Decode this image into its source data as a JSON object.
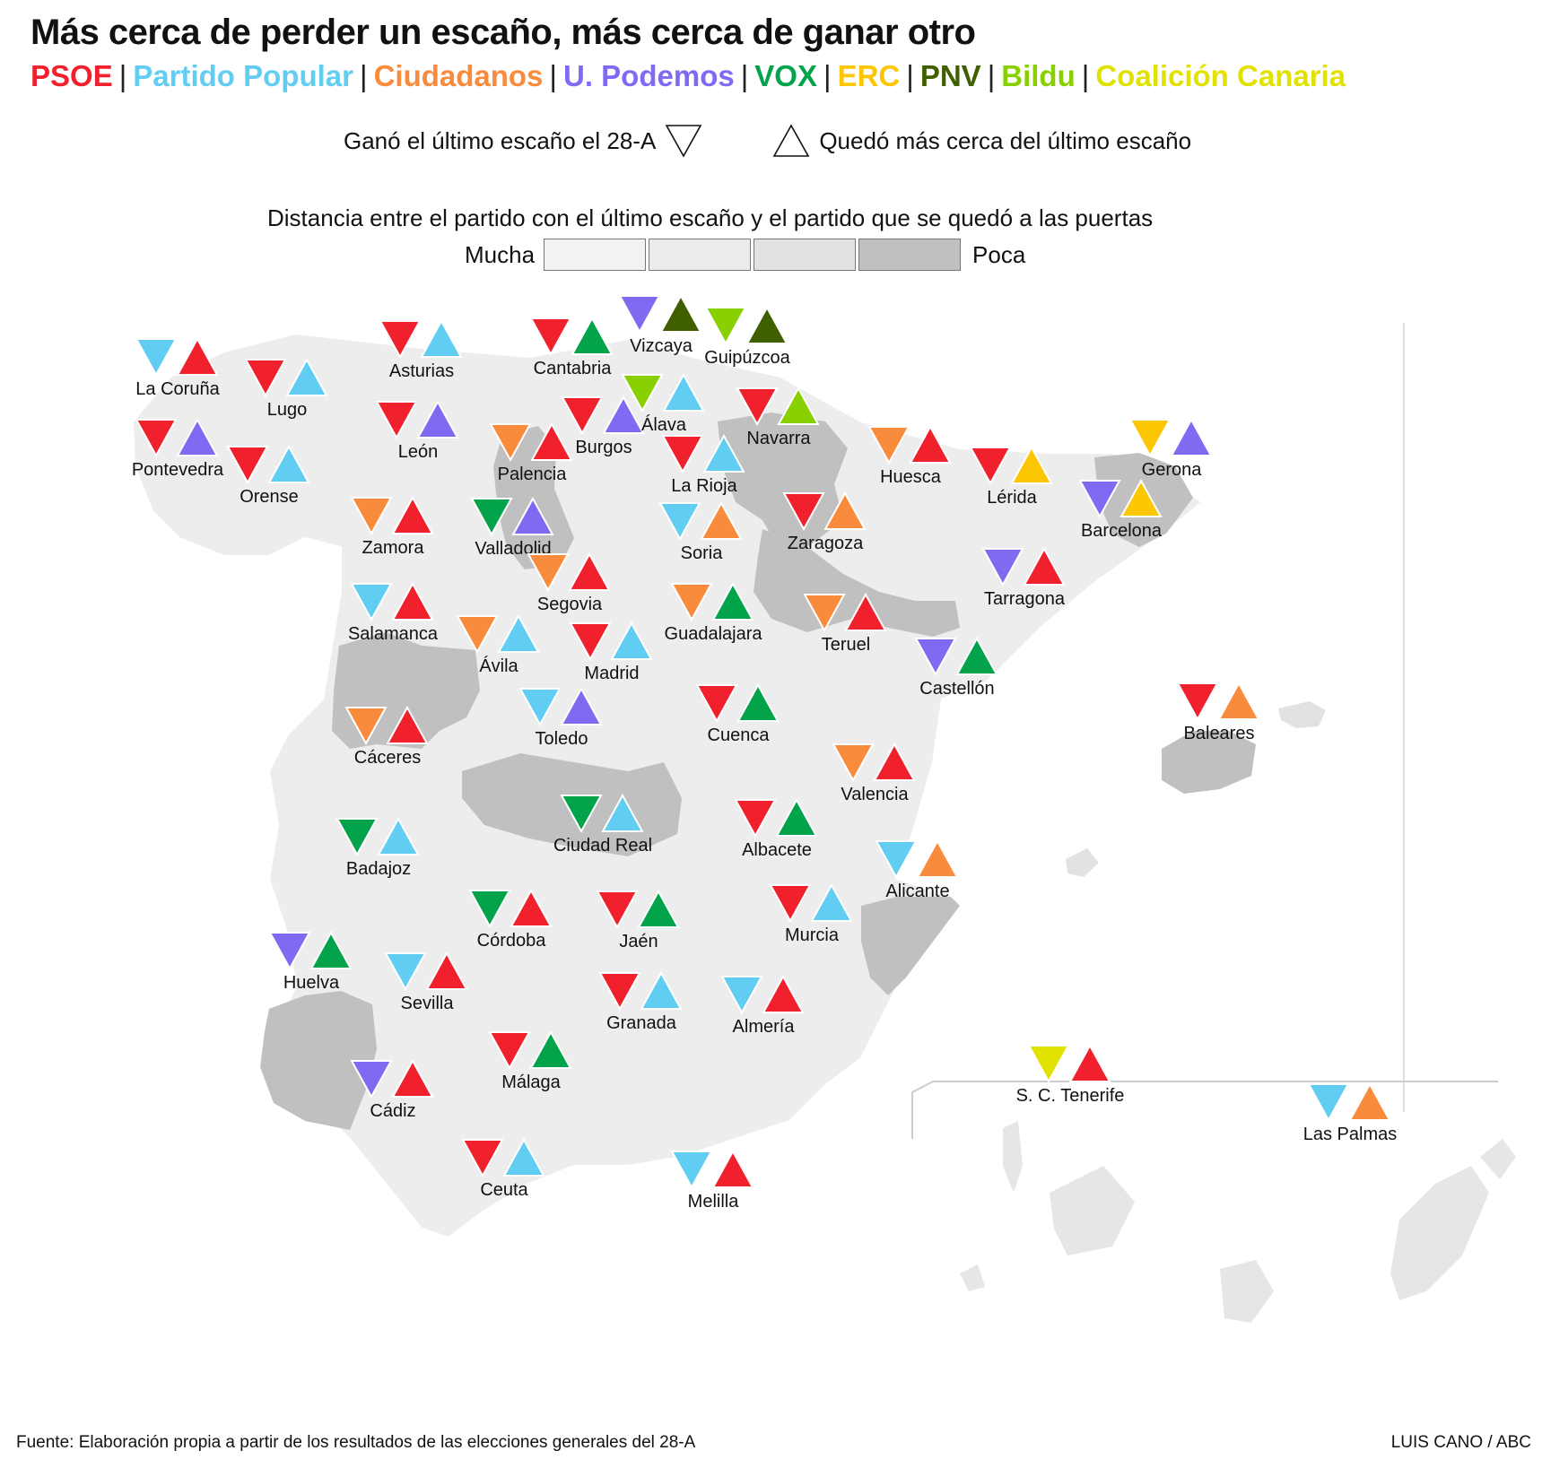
{
  "title": "Más cerca de perder un escaño, más cerca de ganar otro",
  "parties": [
    {
      "name": "PSOE",
      "color": "#f0202c"
    },
    {
      "name": "Partido Popular",
      "color": "#62cdf2"
    },
    {
      "name": "Ciudadanos",
      "color": "#f98b3c"
    },
    {
      "name": "U. Podemos",
      "color": "#7f6af2"
    },
    {
      "name": "VOX",
      "color": "#02a34a"
    },
    {
      "name": "ERC",
      "color": "#fcc603"
    },
    {
      "name": "PNV",
      "color": "#406000"
    },
    {
      "name": "Bildu",
      "color": "#89d000"
    },
    {
      "name": "Coalición Canaria",
      "color": "#e1e200"
    }
  ],
  "legend": {
    "won_last_seat": "Ganó el último escaño el 28-A",
    "closest_to_last_seat": "Quedó más cerca del último escaño",
    "distance_title": "Distancia entre el partido con el último escaño y el partido que se quedó a las puertas",
    "distance_low": "Mucha",
    "distance_high": "Poca",
    "distance_shades": [
      "#f2f2f2",
      "#ececec",
      "#e2e2e2",
      "#c0c0c0"
    ]
  },
  "provinces": [
    {
      "name": "La Coruña",
      "won": "Partido Popular",
      "closest": "PSOE",
      "distance": 1
    },
    {
      "name": "Lugo",
      "won": "PSOE",
      "closest": "Partido Popular",
      "distance": 1
    },
    {
      "name": "Asturias",
      "won": "PSOE",
      "closest": "Partido Popular",
      "distance": 2
    },
    {
      "name": "Cantabria",
      "won": "PSOE",
      "closest": "VOX",
      "distance": 1
    },
    {
      "name": "Vizcaya",
      "won": "U. Podemos",
      "closest": "PNV",
      "distance": 1
    },
    {
      "name": "Guipúzcoa",
      "won": "Bildu",
      "closest": "PNV",
      "distance": 1
    },
    {
      "name": "Pontevedra",
      "won": "PSOE",
      "closest": "U. Podemos",
      "distance": 2
    },
    {
      "name": "Orense",
      "won": "PSOE",
      "closest": "Partido Popular",
      "distance": 2
    },
    {
      "name": "León",
      "won": "PSOE",
      "closest": "U. Podemos",
      "distance": 2
    },
    {
      "name": "Palencia",
      "won": "Ciudadanos",
      "closest": "PSOE",
      "distance": 4
    },
    {
      "name": "Burgos",
      "won": "PSOE",
      "closest": "U. Podemos",
      "distance": 2
    },
    {
      "name": "Álava",
      "won": "Bildu",
      "closest": "Partido Popular",
      "distance": 1
    },
    {
      "name": "Navarra",
      "won": "PSOE",
      "closest": "Bildu",
      "distance": 4
    },
    {
      "name": "La Rioja",
      "won": "PSOE",
      "closest": "Partido Popular",
      "distance": 1
    },
    {
      "name": "Huesca",
      "won": "Ciudadanos",
      "closest": "PSOE",
      "distance": 2
    },
    {
      "name": "Lérida",
      "won": "PSOE",
      "closest": "ERC",
      "distance": 2
    },
    {
      "name": "Gerona",
      "won": "ERC",
      "closest": "U. Podemos",
      "distance": 4
    },
    {
      "name": "Barcelona",
      "won": "U. Podemos",
      "closest": "ERC",
      "distance": 2
    },
    {
      "name": "Zamora",
      "won": "Ciudadanos",
      "closest": "PSOE",
      "distance": 2
    },
    {
      "name": "Valladolid",
      "won": "VOX",
      "closest": "U. Podemos",
      "distance": 2
    },
    {
      "name": "Soria",
      "won": "Partido Popular",
      "closest": "Ciudadanos",
      "distance": 1
    },
    {
      "name": "Zaragoza",
      "won": "PSOE",
      "closest": "Ciudadanos",
      "distance": 4
    },
    {
      "name": "Segovia",
      "won": "Ciudadanos",
      "closest": "PSOE",
      "distance": 1
    },
    {
      "name": "Guadalajara",
      "won": "Ciudadanos",
      "closest": "VOX",
      "distance": 2
    },
    {
      "name": "Teruel",
      "won": "Ciudadanos",
      "closest": "PSOE",
      "distance": 1
    },
    {
      "name": "Tarragona",
      "won": "U. Podemos",
      "closest": "PSOE",
      "distance": 1
    },
    {
      "name": "Salamanca",
      "won": "Partido Popular",
      "closest": "PSOE",
      "distance": 4
    },
    {
      "name": "Ávila",
      "won": "Ciudadanos",
      "closest": "Partido Popular",
      "distance": 1
    },
    {
      "name": "Madrid",
      "won": "PSOE",
      "closest": "Partido Popular",
      "distance": 2
    },
    {
      "name": "Castellón",
      "won": "U. Podemos",
      "closest": "VOX",
      "distance": 2
    },
    {
      "name": "Baleares",
      "won": "PSOE",
      "closest": "Ciudadanos",
      "distance": 4
    },
    {
      "name": "Toledo",
      "won": "Partido Popular",
      "closest": "U. Podemos",
      "distance": 4
    },
    {
      "name": "Cuenca",
      "won": "PSOE",
      "closest": "VOX",
      "distance": 1
    },
    {
      "name": "Cáceres",
      "won": "Ciudadanos",
      "closest": "PSOE",
      "distance": 1
    },
    {
      "name": "Valencia",
      "won": "Ciudadanos",
      "closest": "PSOE",
      "distance": 2
    },
    {
      "name": "Badajoz",
      "won": "VOX",
      "closest": "Partido Popular",
      "distance": 3
    },
    {
      "name": "Ciudad Real",
      "won": "VOX",
      "closest": "Partido Popular",
      "distance": 2
    },
    {
      "name": "Albacete",
      "won": "PSOE",
      "closest": "VOX",
      "distance": 3
    },
    {
      "name": "Alicante",
      "won": "Partido Popular",
      "closest": "Ciudadanos",
      "distance": 4
    },
    {
      "name": "Córdoba",
      "won": "VOX",
      "closest": "PSOE",
      "distance": 3
    },
    {
      "name": "Jaén",
      "won": "PSOE",
      "closest": "VOX",
      "distance": 3
    },
    {
      "name": "Murcia",
      "won": "PSOE",
      "closest": "Partido Popular",
      "distance": 3
    },
    {
      "name": "Huelva",
      "won": "U. Podemos",
      "closest": "VOX",
      "distance": 4
    },
    {
      "name": "Sevilla",
      "won": "Partido Popular",
      "closest": "PSOE",
      "distance": 1
    },
    {
      "name": "Granada",
      "won": "PSOE",
      "closest": "Partido Popular",
      "distance": 2
    },
    {
      "name": "Almería",
      "won": "Partido Popular",
      "closest": "PSOE",
      "distance": 2
    },
    {
      "name": "Málaga",
      "won": "PSOE",
      "closest": "VOX",
      "distance": 3
    },
    {
      "name": "Cádiz",
      "won": "U. Podemos",
      "closest": "PSOE",
      "distance": 3
    },
    {
      "name": "Ceuta",
      "won": "PSOE",
      "closest": "Partido Popular",
      "distance": 1
    },
    {
      "name": "Melilla",
      "won": "Partido Popular",
      "closest": "PSOE",
      "distance": 1
    },
    {
      "name": "S. C. Tenerife",
      "won": "Coalición Canaria",
      "closest": "PSOE",
      "distance": 2
    },
    {
      "name": "Las Palmas",
      "won": "Partido Popular",
      "closest": "Ciudadanos",
      "distance": 2
    }
  ],
  "source": "Fuente: Elaboración propia a partir de los resultados de las elecciones generales del 28-A",
  "credit": "LUIS CANO / ABC"
}
